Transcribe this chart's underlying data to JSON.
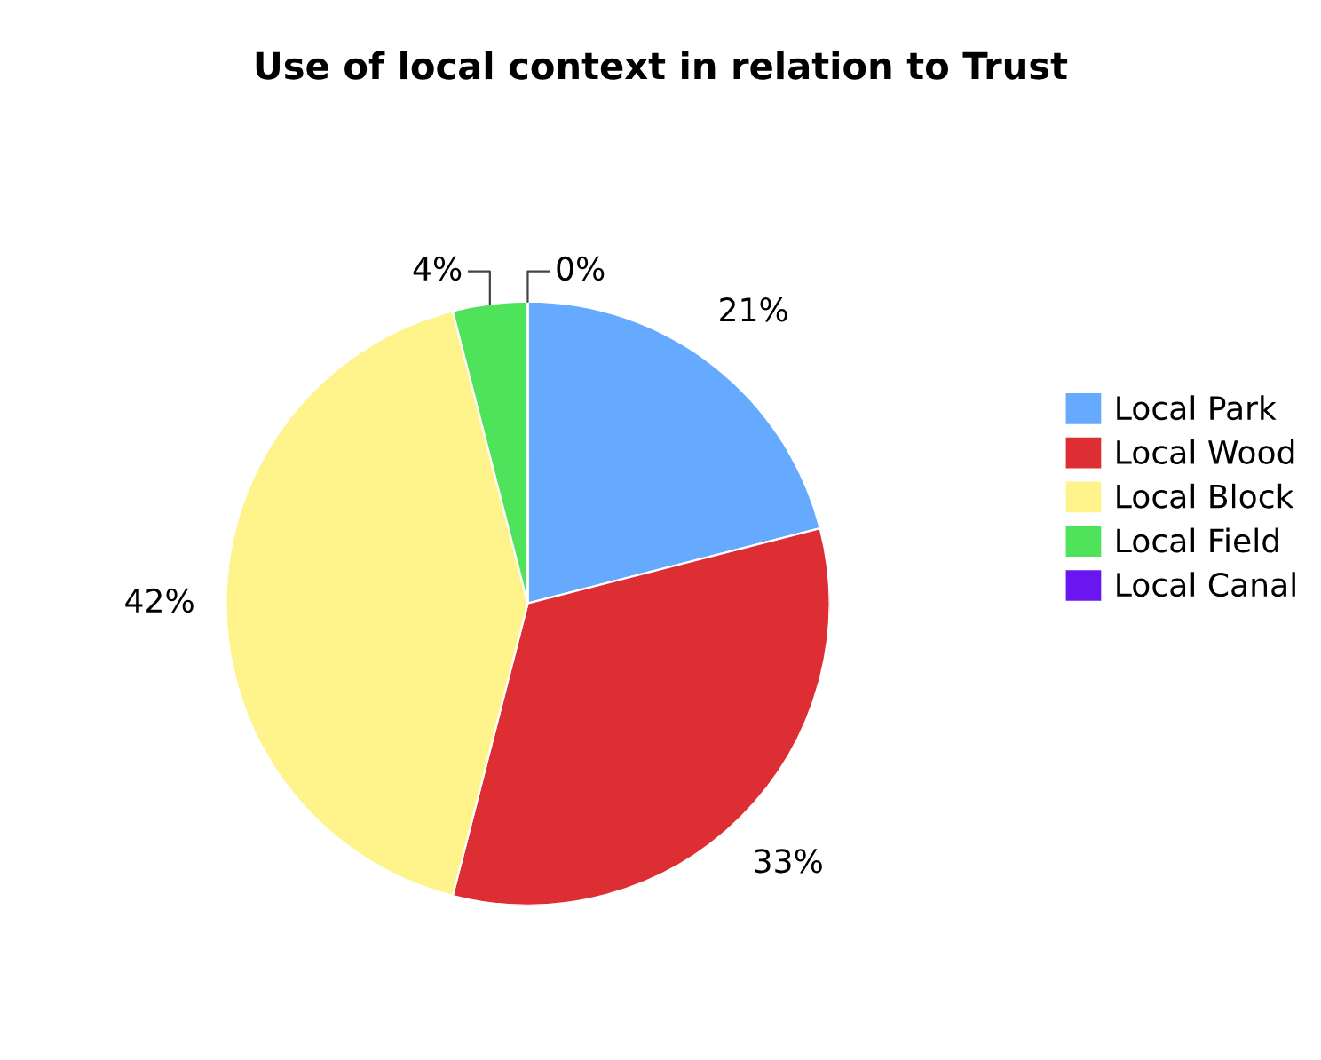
{
  "chart_data": {
    "type": "pie",
    "title": "Use of local context in relation to Trust",
    "categories": [
      "Local Park",
      "Local Wood",
      "Local Block",
      "Local Field",
      "Local Canal"
    ],
    "values": [
      21,
      33,
      42,
      4,
      0
    ],
    "value_labels": [
      "21%",
      "33%",
      "42%",
      "4%",
      "0%"
    ],
    "colors": [
      "#66aaff",
      "#dd2e33",
      "#fff48c",
      "#4ee35a",
      "#6a16f0"
    ],
    "legend": "right"
  }
}
